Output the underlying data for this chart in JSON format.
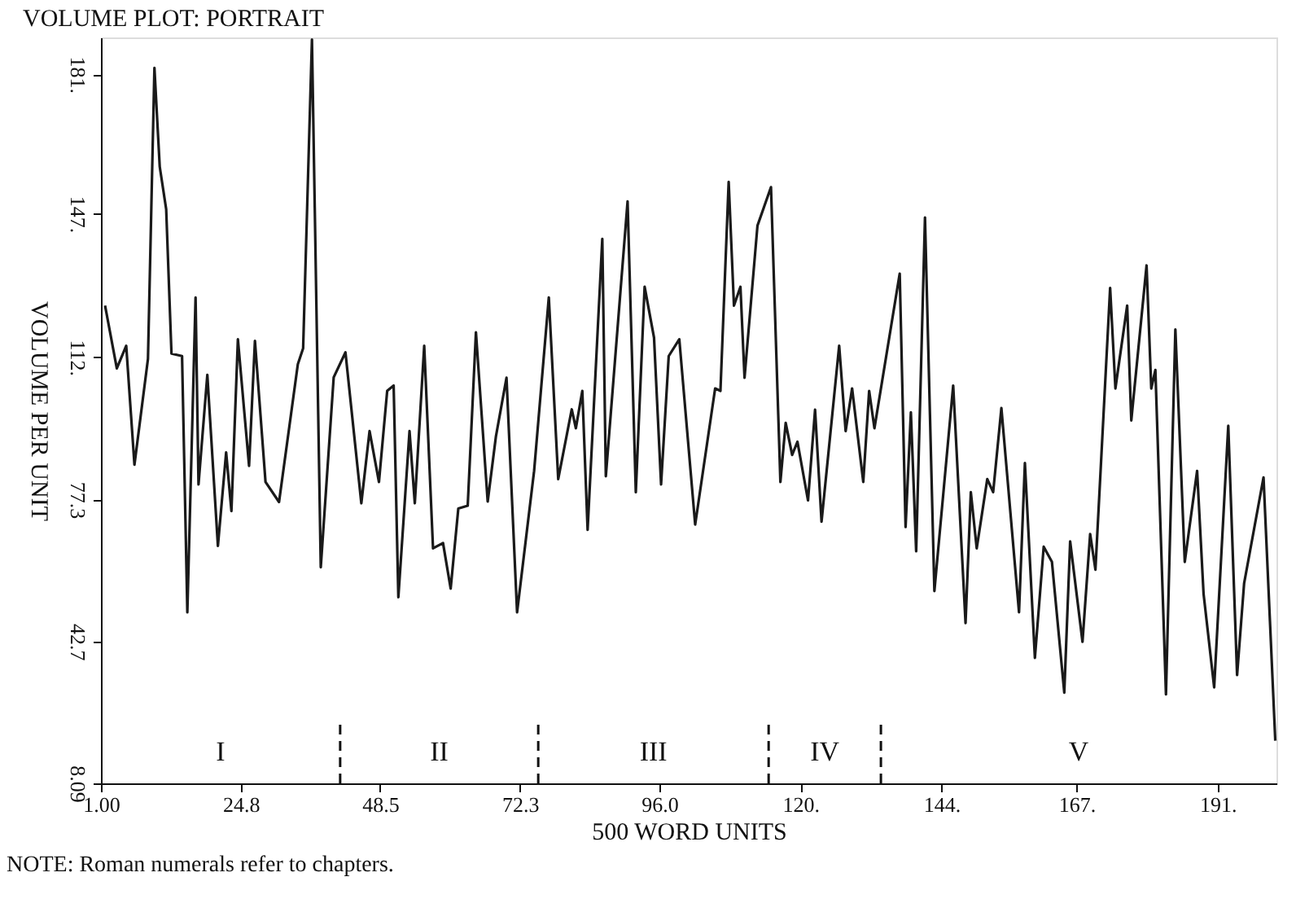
{
  "chart_data": {
    "type": "line",
    "title": "VOLUME PLOT: PORTRAIT",
    "xlabel": "500 WORD UNITS",
    "ylabel": "VOLUME PER UNIT",
    "x": [
      1.7,
      3.7,
      5.3,
      6.7,
      9.0,
      10.1,
      11.0,
      12.1,
      13.0,
      14.8,
      15.7,
      17.1,
      17.6,
      19.1,
      20.9,
      22.3,
      23.2,
      24.3,
      26.2,
      27.2,
      29.0,
      31.3,
      34.5,
      35.4,
      36.9,
      38.4,
      40.6,
      42.6,
      45.3,
      46.7,
      48.3,
      49.7,
      50.8,
      51.6,
      53.5,
      54.4,
      56.0,
      57.5,
      59.2,
      60.5,
      61.8,
      63.4,
      64.8,
      66.8,
      68.2,
      70.0,
      71.8,
      74.7,
      77.2,
      78.8,
      81.1,
      81.8,
      82.9,
      83.8,
      86.3,
      86.9,
      90.6,
      92.0,
      93.5,
      95.1,
      96.3,
      97.6,
      99.4,
      102.1,
      105.5,
      106.4,
      107.8,
      108.7,
      109.8,
      110.5,
      112.7,
      115.0,
      116.6,
      117.5,
      118.6,
      119.5,
      121.3,
      122.5,
      123.6,
      126.6,
      127.7,
      128.8,
      130.7,
      131.7,
      132.6,
      136.9,
      137.9,
      138.8,
      139.7,
      141.2,
      142.8,
      146.0,
      148.1,
      149.0,
      150.0,
      151.8,
      152.8,
      154.2,
      157.2,
      158.2,
      159.9,
      161.4,
      162.8,
      164.9,
      165.9,
      168.0,
      169.3,
      170.2,
      172.7,
      173.6,
      175.6,
      176.3,
      178.9,
      179.7,
      180.4,
      182.2,
      183.8,
      185.4,
      187.5,
      188.6,
      190.4,
      192.8,
      194.3,
      195.5,
      198.8,
      200.8
    ],
    "series": [
      {
        "color": "#1a1a1a",
        "values": [
          124.6,
          109.3,
          114.8,
          85.8,
          111.6,
          182.6,
          158.5,
          148.1,
          112.9,
          112.3,
          49.8,
          126.6,
          81.0,
          107.7,
          66.0,
          88.8,
          74.5,
          116.4,
          85.5,
          116.0,
          81.6,
          76.7,
          110.3,
          114.2,
          189.5,
          60.8,
          107.1,
          113.2,
          76.4,
          94.0,
          81.6,
          103.8,
          105.1,
          53.5,
          94.0,
          76.4,
          114.8,
          65.4,
          66.7,
          55.6,
          75.1,
          75.8,
          118.1,
          76.8,
          92.7,
          107.0,
          49.8,
          84.3,
          126.6,
          82.3,
          99.3,
          94.7,
          103.8,
          69.9,
          140.9,
          83.0,
          150.0,
          79.1,
          129.2,
          116.8,
          81.0,
          112.3,
          116.4,
          71.2,
          104.4,
          103.8,
          154.8,
          124.6,
          129.2,
          107.0,
          144.1,
          153.5,
          81.6,
          96.0,
          88.2,
          91.4,
          77.1,
          99.2,
          71.9,
          114.8,
          94.0,
          104.4,
          81.6,
          103.8,
          94.7,
          132.4,
          70.6,
          98.6,
          64.7,
          146.1,
          55.0,
          105.1,
          47.2,
          79.1,
          65.4,
          82.3,
          79.1,
          99.6,
          49.8,
          86.2,
          38.7,
          65.8,
          62.1,
          30.2,
          67.1,
          42.6,
          68.9,
          60.2,
          128.9,
          104.4,
          124.6,
          96.6,
          134.4,
          104.4,
          108.9,
          29.8,
          118.8,
          62.1,
          84.3,
          54.3,
          31.5,
          95.3,
          34.5,
          56.9,
          82.7,
          18.5
        ]
      }
    ],
    "xlim": [
      1,
      201
    ],
    "ylim": [
      8.09,
      190
    ],
    "xticks": [
      {
        "value": 1,
        "label": "1.00"
      },
      24.8,
      48.5,
      72.3,
      {
        "value": 96,
        "label": "96.0"
      },
      {
        "value": 120,
        "label": "120."
      },
      {
        "value": 144,
        "label": "144."
      },
      {
        "value": 167,
        "label": "167."
      },
      {
        "value": 191,
        "label": "191."
      }
    ],
    "yticks": [
      8.09,
      42.7,
      77.3,
      {
        "value": 112,
        "label": "112."
      },
      {
        "value": 147,
        "label": "147."
      },
      {
        "value": 181,
        "label": "181."
      }
    ],
    "ref_lines": [
      {
        "axis": "x",
        "value": 41.7,
        "line_style": "dashed"
      },
      {
        "axis": "x",
        "value": 75.4,
        "line_style": "dashed"
      },
      {
        "axis": "x",
        "value": 114.6,
        "line_style": "dashed"
      },
      {
        "axis": "x",
        "value": 133.7,
        "line_style": "dashed"
      }
    ],
    "annotations": [
      "I",
      "II",
      "III",
      "IV",
      "V",
      "NOTE: Roman numerals refer to chapters."
    ],
    "grid": false,
    "marker": "none",
    "line_style": "solid"
  }
}
